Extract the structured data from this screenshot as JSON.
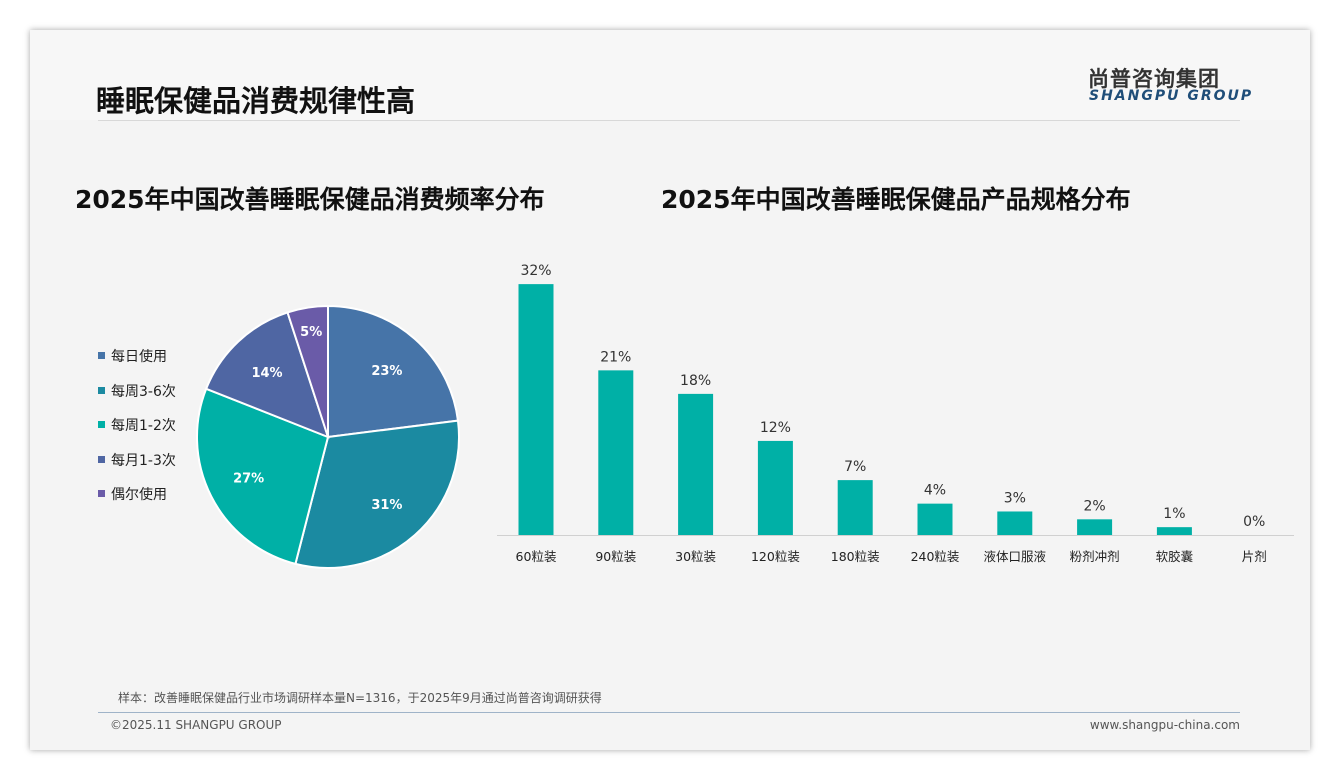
{
  "header": {
    "title": "睡眠保健品消费规律性高",
    "logo_cn": "尚普咨询集团",
    "logo_en": "SHANGPU GROUP"
  },
  "footer": {
    "note": "样本：改善睡眠保健品行业市场调研样本量N=1316，于2025年9月通过尚普咨询调研获得",
    "copyright": "©2025.11 SHANGPU GROUP",
    "website": "www.shangpu-china.com"
  },
  "chart_data": [
    {
      "type": "pie",
      "title": "2025年中国改善睡眠保健品消费频率分布",
      "legend_position": "left",
      "slices": [
        {
          "label": "每日使用",
          "value": 23,
          "text": "23%",
          "color": "#4674a8"
        },
        {
          "label": "每周3-6次",
          "value": 31,
          "text": "31%",
          "color": "#1b8aa1"
        },
        {
          "label": "每周1-2次",
          "value": 27,
          "text": "27%",
          "color": "#00b0a6"
        },
        {
          "label": "每月1-3次",
          "value": 14,
          "text": "14%",
          "color": "#4f66a3"
        },
        {
          "label": "偶尔使用",
          "value": 5,
          "text": "5%",
          "color": "#6a5ba8"
        }
      ]
    },
    {
      "type": "bar",
      "title": "2025年中国改善睡眠保健品产品规格分布",
      "color": "#00b0a6",
      "categories": [
        "60粒装",
        "90粒装",
        "30粒装",
        "120粒装",
        "180粒装",
        "240粒装",
        "液体口服液",
        "粉剂冲剂",
        "软胶囊",
        "片剂"
      ],
      "values": [
        32,
        21,
        18,
        12,
        7,
        4,
        3,
        2,
        1,
        0
      ],
      "labels": [
        "32%",
        "21%",
        "18%",
        "12%",
        "7%",
        "4%",
        "3%",
        "2%",
        "1%",
        "0%"
      ]
    }
  ]
}
